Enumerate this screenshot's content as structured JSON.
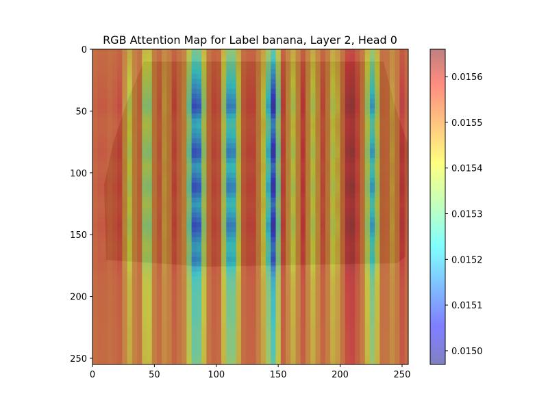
{
  "chart_data": {
    "type": "heatmap",
    "title": "RGB Attention Map for Label banana, Layer 2, Head 0",
    "xlabel": "",
    "ylabel": "",
    "xlim": [
      0,
      255
    ],
    "ylim": [
      255,
      0
    ],
    "x_ticks": [
      0,
      50,
      100,
      150,
      200,
      250
    ],
    "y_ticks": [
      0,
      50,
      100,
      150,
      200,
      250
    ],
    "colormap": "jet",
    "overlay_alpha": 0.5,
    "colorbar": {
      "min": 0.01497,
      "max": 0.01566,
      "ticks": [
        "0.0150",
        "0.0151",
        "0.0152",
        "0.0153",
        "0.0154",
        "0.0155",
        "0.0156"
      ],
      "tick_values": [
        0.015,
        0.0151,
        0.0152,
        0.0153,
        0.0154,
        0.0155,
        0.0156
      ]
    },
    "column_profile": {
      "x": [
        0,
        8,
        15,
        22,
        30,
        37,
        44,
        52,
        59,
        66,
        74,
        84,
        93,
        101,
        112,
        121,
        129,
        137,
        146,
        154,
        162,
        170,
        178,
        187,
        195,
        208,
        218,
        226,
        235,
        243,
        250,
        255
      ],
      "value": [
        0.01552,
        0.01554,
        0.01552,
        0.01555,
        0.0154,
        0.01555,
        0.0153,
        0.01556,
        0.01545,
        0.01555,
        0.01548,
        0.0151,
        0.0155,
        0.01557,
        0.01515,
        0.01552,
        0.01556,
        0.01545,
        0.01512,
        0.01555,
        0.0154,
        0.01556,
        0.0154,
        0.01556,
        0.01538,
        0.01563,
        0.0155,
        0.01525,
        0.01555,
        0.01545,
        0.01557,
        0.01552
      ]
    },
    "row_profile": {
      "y": [
        0,
        15,
        30,
        47,
        60,
        70,
        84,
        95,
        112,
        125,
        143,
        160,
        170,
        185,
        200,
        215,
        230,
        245,
        255
      ],
      "value": [
        0.0,
        0.3,
        0.6,
        1.0,
        0.4,
        0.6,
        1.0,
        0.5,
        1.0,
        0.5,
        1.0,
        0.5,
        0.7,
        0.3,
        0.2,
        0.2,
        0.1,
        0.1,
        0.0
      ]
    }
  }
}
